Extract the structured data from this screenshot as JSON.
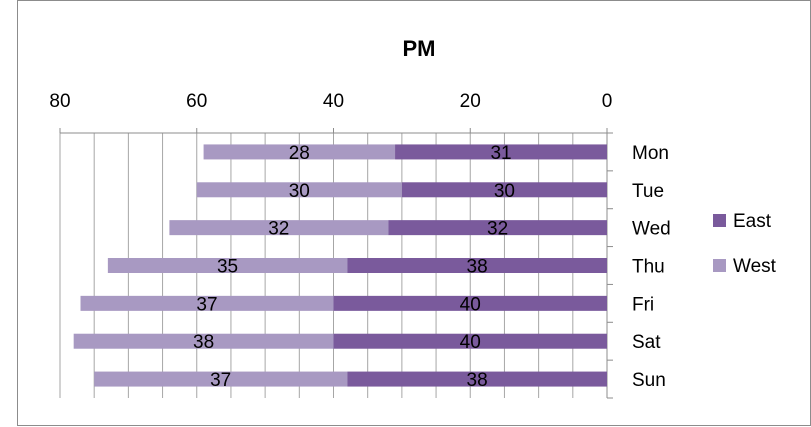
{
  "chart_data": {
    "type": "bar",
    "orientation": "horizontal-stacked",
    "title": "PM",
    "xlabel": "",
    "ylabel": "",
    "xlim": [
      80,
      0
    ],
    "x_axis_reversed": true,
    "x_ticks": [
      80,
      60,
      40,
      20,
      0
    ],
    "x_tick_labels": [
      "80",
      "60",
      "40",
      "20",
      "0"
    ],
    "x_minor_grid_step": 5,
    "x_axis_position": "top",
    "y_axis_position": "right",
    "grid": true,
    "legend_position": "right",
    "categories": [
      "Mon",
      "Tue",
      "Wed",
      "Thu",
      "Fri",
      "Sat",
      "Sun"
    ],
    "series": [
      {
        "name": "East",
        "color": "#7a5a9c",
        "values": [
          31,
          30,
          32,
          38,
          40,
          40,
          38
        ]
      },
      {
        "name": "West",
        "color": "#a899c2",
        "values": [
          28,
          30,
          32,
          35,
          37,
          38,
          37
        ]
      }
    ]
  }
}
